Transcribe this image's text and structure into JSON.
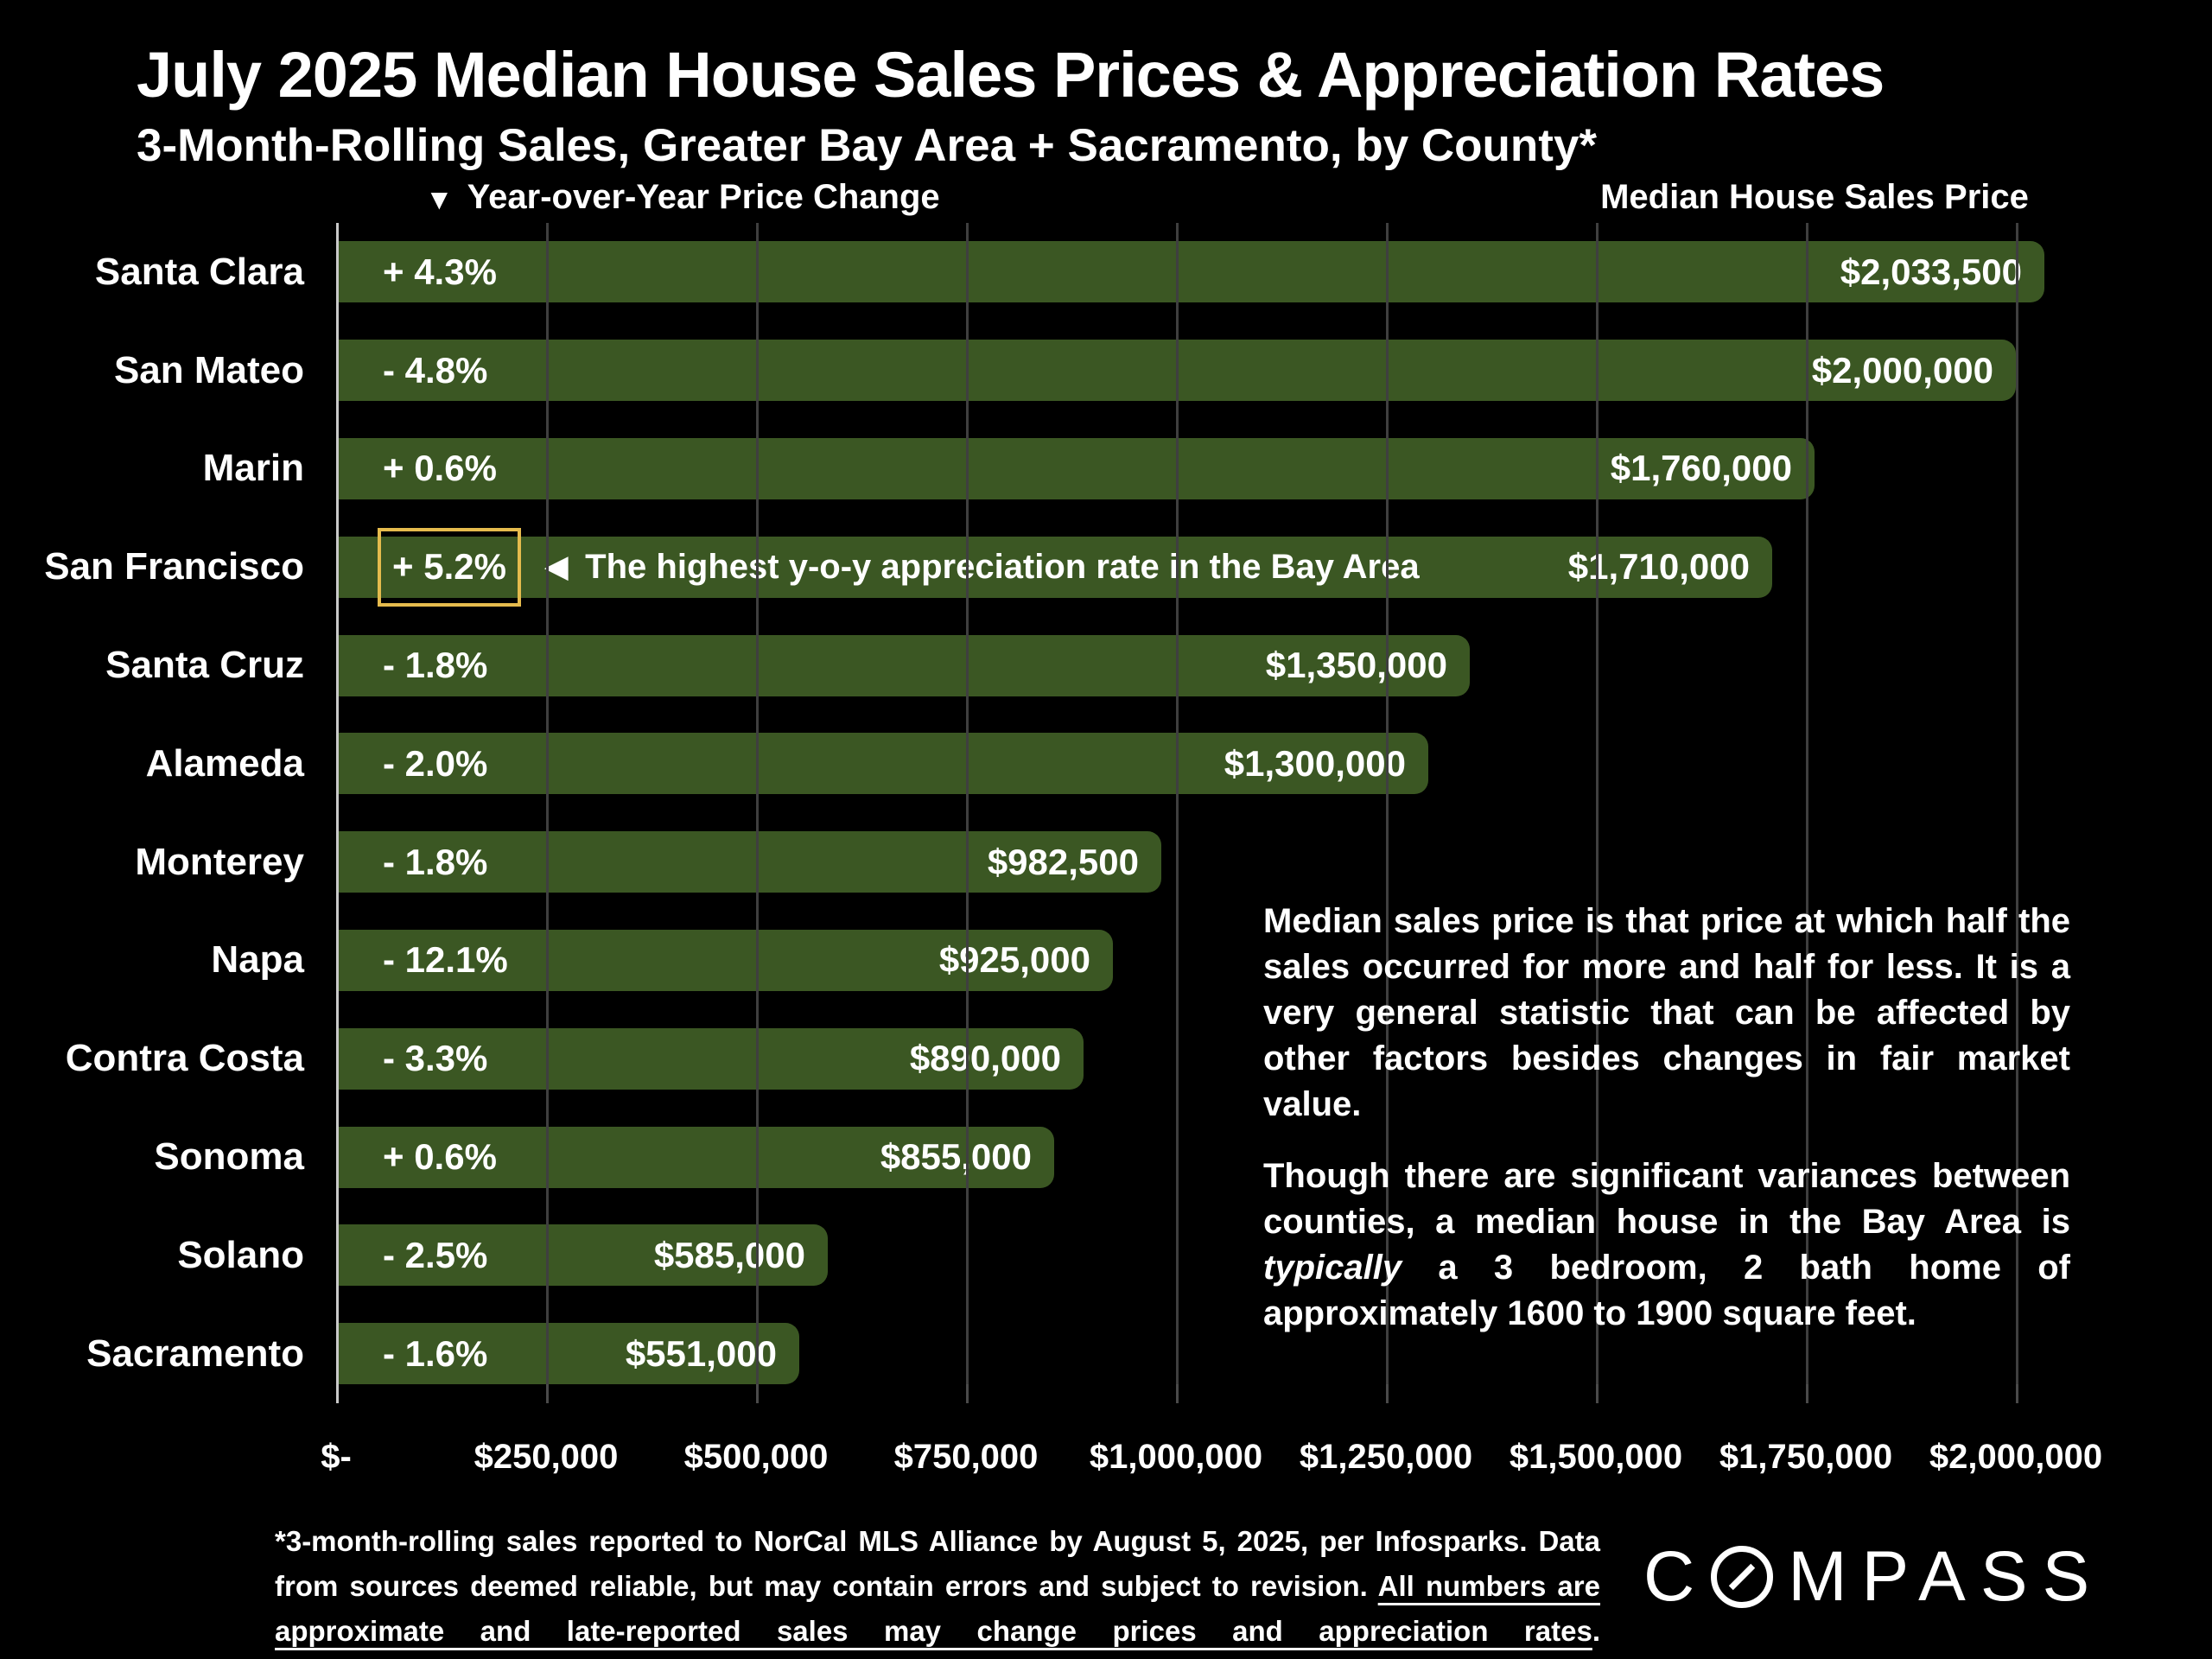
{
  "header": {
    "title": "July 2025 Median House Sales Prices & Appreciation Rates",
    "subtitle": "3-Month-Rolling Sales, Greater Bay Area + Sacramento, by County*"
  },
  "columns": {
    "change_header_icon": "▼",
    "change_header": "Year-over-Year Price Change",
    "price_header": "Median House Sales Price"
  },
  "chart_data": {
    "type": "bar",
    "orientation": "horizontal",
    "title": "July 2025 Median House Sales Prices & Appreciation Rates",
    "categories": [
      "Santa Clara",
      "San Mateo",
      "Marin",
      "San Francisco",
      "Santa Cruz",
      "Alameda",
      "Monterey",
      "Napa",
      "Contra Costa",
      "Sonoma",
      "Solano",
      "Sacramento"
    ],
    "series": [
      {
        "name": "Median House Sales Price ($)",
        "values": [
          2033500,
          2000000,
          1760000,
          1710000,
          1350000,
          1300000,
          982500,
          925000,
          890000,
          855000,
          585000,
          551000
        ]
      },
      {
        "name": "Year-over-Year Price Change (%)",
        "values": [
          4.3,
          -4.8,
          0.6,
          5.2,
          -1.8,
          -2.0,
          -1.8,
          -12.1,
          -3.3,
          0.6,
          -2.5,
          -1.6
        ]
      }
    ],
    "price_labels": [
      "$2,033,500",
      "$2,000,000",
      "$1,760,000",
      "$1,710,000",
      "$1,350,000",
      "$1,300,000",
      "$982,500",
      "$925,000",
      "$890,000",
      "$855,000",
      "$585,000",
      "$551,000"
    ],
    "change_labels": [
      "+ 4.3%",
      "- 4.8%",
      "+ 0.6%",
      "+ 5.2%",
      "- 1.8%",
      "- 2.0%",
      "- 1.8%",
      "- 12.1%",
      "- 3.3%",
      "+ 0.6%",
      "- 2.5%",
      "- 1.6%"
    ],
    "highlight": {
      "index": 3,
      "box_color": "#E5BB4D",
      "arrow": "◀",
      "text": "The highest y-o-y appreciation rate in the Bay Area"
    },
    "x_axis": {
      "tick_values": [
        0,
        250000,
        500000,
        750000,
        1000000,
        1250000,
        1500000,
        1750000,
        2000000
      ],
      "tick_labels": [
        "$-",
        "$250,000",
        "$500,000",
        "$750,000",
        "$1,000,000",
        "$1,250,000",
        "$1,500,000",
        "$1,750,000",
        "$2,000,000"
      ],
      "max": 2147000
    },
    "bar_color": "#3B5723",
    "background_color": "#000000",
    "gridlines": true,
    "legend_position": "none"
  },
  "notes": {
    "para1": "Median sales price is that price at which half the sales occurred for more and half for less. It is a very general statistic that can be affected by other factors besides changes in fair market value.",
    "para2_pre": "Though there are significant variances between counties, a median house in the Bay Area is ",
    "para2_italic": "typically",
    "para2_post": " a 3 bedroom, 2 bath home of approximately 1600 to 1900 square feet."
  },
  "footnote": {
    "before": "*3-month-rolling sales reported to NorCal MLS Alliance by August 5, 2025, per Infosparks. Data from sources deemed reliable, but may contain errors and subject to revision. ",
    "underlined": "All numbers are approximate and late-reported sales may change prices and appreciation rates",
    "after": "."
  },
  "logo": {
    "pre": "C",
    "post": "MPASS",
    "name": "COMPASS"
  }
}
